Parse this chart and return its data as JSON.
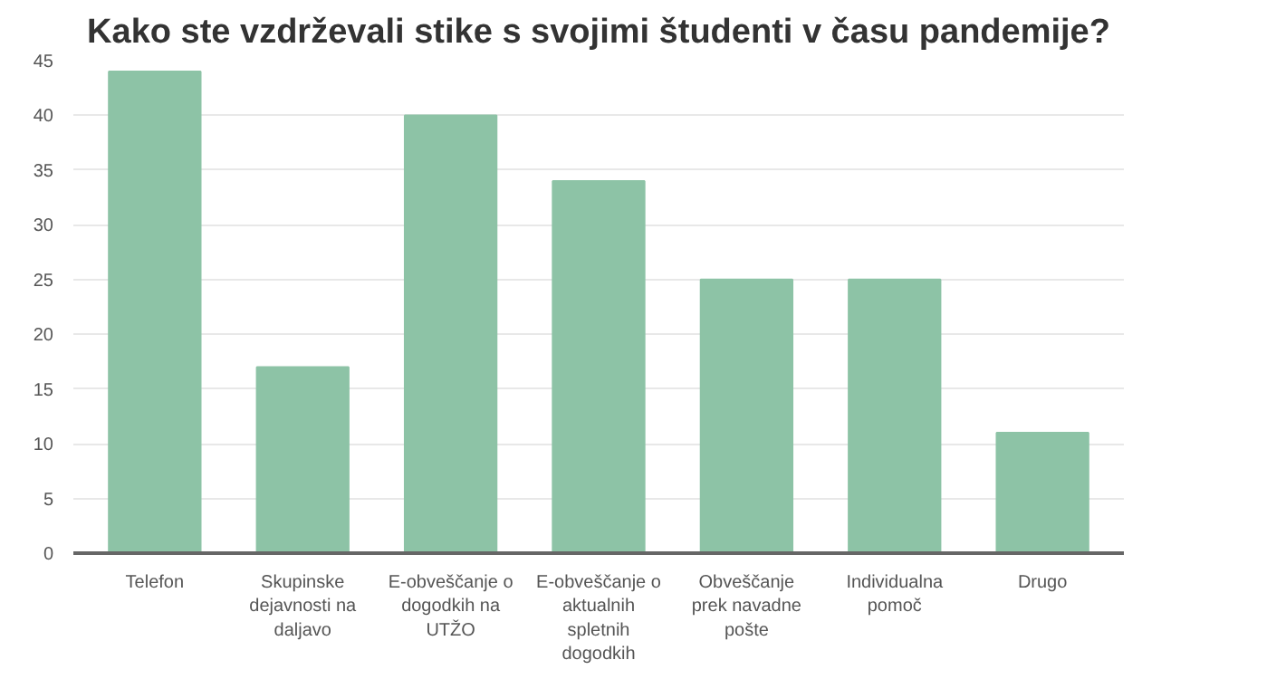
{
  "chart_data": {
    "type": "bar",
    "title": "Kako ste vzdrževali stike s svojimi študenti v času pandemije?",
    "categories": [
      "Telefon",
      "Skupinske dejavnosti na daljavo",
      "E-obveščanje o dogodkih na UTŽO",
      "E-obveščanje o aktualnih spletnih dogodkih",
      "Obveščanje prek navadne pošte",
      "Individualna pomoč",
      "Drugo"
    ],
    "values": [
      44,
      17,
      40,
      34,
      25,
      25,
      11
    ],
    "color": "#8dc3a6",
    "ylim": [
      0,
      45
    ],
    "yticks": [
      0,
      5,
      10,
      15,
      20,
      25,
      30,
      35,
      40,
      45
    ],
    "grid": "y"
  }
}
